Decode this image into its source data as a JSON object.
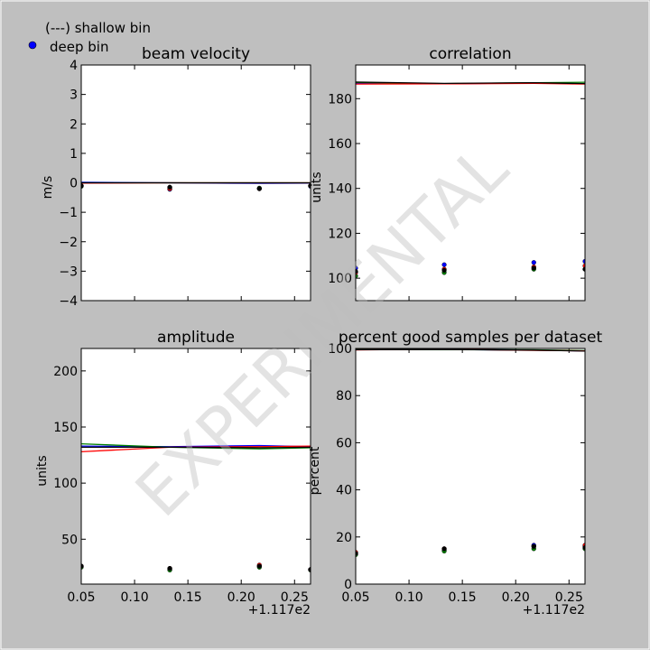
{
  "legend": {
    "shallow_label": "(---) shallow bin",
    "deep_label": "deep bin"
  },
  "watermark": "EXPERIMENTAL",
  "x_offset_label": "+1.117e2",
  "colors": {
    "series": [
      "#0000ff",
      "#008000",
      "#ff0000",
      "#000000"
    ],
    "legend_dot": "#0000ff"
  },
  "chart_data": [
    {
      "type": "line",
      "title": "beam velocity",
      "ylabel": "m/s",
      "xlim": [
        0.05,
        0.265
      ],
      "ylim": [
        -4,
        4
      ],
      "xticks": [],
      "yticks": [
        4,
        3,
        2,
        1,
        0,
        -1,
        -2,
        -3,
        -4
      ],
      "x": [
        0.05,
        0.133,
        0.217,
        0.265
      ],
      "lines": [
        {
          "values": [
            0.02,
            0.0,
            -0.02,
            -0.01
          ]
        },
        {
          "values": [
            0.0,
            0.0,
            0.0,
            0.0
          ]
        },
        {
          "values": [
            -0.01,
            0.0,
            0.0,
            0.0
          ]
        },
        {
          "values": [
            0.0,
            0.0,
            0.0,
            0.0
          ]
        }
      ],
      "points": [
        {
          "values": [
            -0.1,
            -0.22,
            -0.2,
            -0.12
          ]
        },
        {
          "values": [
            -0.12,
            -0.15,
            -0.18,
            -0.1
          ]
        },
        {
          "values": [
            -0.1,
            -0.2,
            -0.2,
            -0.1
          ]
        },
        {
          "values": [
            -0.1,
            -0.15,
            -0.2,
            -0.1
          ]
        }
      ]
    },
    {
      "type": "line",
      "title": "correlation",
      "ylabel": "units",
      "xlim": [
        0.05,
        0.265
      ],
      "ylim": [
        90,
        195
      ],
      "xticks": [],
      "yticks": [
        180,
        160,
        140,
        120,
        100
      ],
      "x": [
        0.05,
        0.133,
        0.217,
        0.265
      ],
      "lines": [
        {
          "values": [
            187,
            186.6,
            187,
            186.6
          ]
        },
        {
          "values": [
            187.2,
            186.7,
            187.1,
            187.3
          ]
        },
        {
          "values": [
            186.5,
            186.6,
            186.8,
            186.5
          ]
        },
        {
          "values": [
            187.4,
            186.8,
            187.1,
            186.7
          ]
        }
      ],
      "points": [
        {
          "values": [
            104.5,
            106,
            107,
            107.5
          ]
        },
        {
          "values": [
            101,
            102.5,
            104,
            104
          ]
        },
        {
          "values": [
            102.5,
            104,
            105,
            105.5
          ]
        },
        {
          "values": [
            103,
            103.5,
            104.5,
            104
          ]
        }
      ]
    },
    {
      "type": "line",
      "title": "amplitude",
      "ylabel": "units",
      "xlim": [
        0.05,
        0.265
      ],
      "ylim": [
        10,
        220
      ],
      "xticks": [
        0.05,
        0.1,
        0.15,
        0.2,
        0.25
      ],
      "xticklabels": [
        "0.05",
        "0.10",
        "0.15",
        "0.20",
        "0.25"
      ],
      "yticks": [
        200,
        150,
        100,
        50
      ],
      "x": [
        0.05,
        0.133,
        0.217,
        0.265
      ],
      "lines": [
        {
          "values": [
            133,
            132.5,
            133.5,
            132.5
          ]
        },
        {
          "values": [
            135,
            132,
            130.5,
            131.5
          ]
        },
        {
          "values": [
            128,
            132,
            132.5,
            133
          ]
        },
        {
          "values": [
            132,
            132,
            131.5,
            132
          ]
        }
      ],
      "points": [
        {
          "values": [
            26,
            23,
            26,
            23
          ]
        },
        {
          "values": [
            25,
            22.5,
            25,
            22.5
          ]
        },
        {
          "values": [
            26,
            24,
            27,
            23
          ]
        },
        {
          "values": [
            26,
            24,
            26,
            23
          ]
        }
      ]
    },
    {
      "type": "line",
      "title": "percent good samples per dataset",
      "ylabel": "percent",
      "xlim": [
        0.05,
        0.265
      ],
      "ylim": [
        0,
        100
      ],
      "xticks": [
        0.05,
        0.1,
        0.15,
        0.2,
        0.25
      ],
      "xticklabels": [
        "0.05",
        "0.10",
        "0.15",
        "0.20",
        "0.25"
      ],
      "yticks": [
        100,
        80,
        60,
        40,
        20,
        0
      ],
      "x": [
        0.05,
        0.133,
        0.217,
        0.265
      ],
      "lines": [
        {
          "values": [
            99.5,
            99.6,
            99.3,
            99.0
          ]
        },
        {
          "values": [
            99.6,
            99.5,
            99.4,
            99.1
          ]
        },
        {
          "values": [
            99.4,
            99.7,
            99.2,
            99.0
          ]
        },
        {
          "values": [
            99.5,
            99.6,
            99.3,
            98.9
          ]
        }
      ],
      "points": [
        {
          "values": [
            13,
            14.5,
            16.5,
            16
          ]
        },
        {
          "values": [
            12.5,
            14,
            15,
            15
          ]
        },
        {
          "values": [
            13.5,
            15,
            16,
            16.5
          ]
        },
        {
          "values": [
            13,
            15,
            16,
            15.5
          ]
        }
      ]
    }
  ]
}
